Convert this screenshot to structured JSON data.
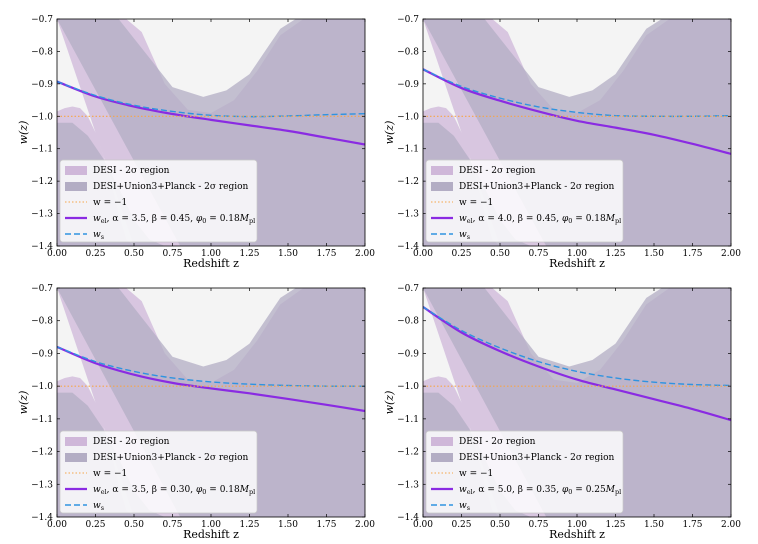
{
  "colors": {
    "desi_band": "#cfb7d9",
    "combined_band": "#b3adc4",
    "overlap": "#a793b6",
    "phantom_divide": "#f5a54a",
    "w_cpl": "#8a2be2",
    "w_s": "#2f93e0"
  },
  "chart_data": [
    {
      "type": "line",
      "panel": "top-left",
      "xlabel": "Redshift z",
      "ylabel": "w(z)",
      "xlim": [
        0.0,
        2.0
      ],
      "ylim": [
        -1.4,
        -0.7
      ],
      "xticks": [
        "0.00",
        "0.25",
        "0.50",
        "0.75",
        "1.00",
        "1.25",
        "1.50",
        "1.75",
        "2.00"
      ],
      "yticks": [
        "−1.4",
        "−1.3",
        "−1.2",
        "−1.1",
        "−1.0",
        "−0.9",
        "−0.8",
        "−0.7"
      ],
      "legend": {
        "position": "lower-left",
        "entries": [
          {
            "label": "DESI - 2σ region",
            "kind": "desi"
          },
          {
            "label": "DESI+Union3+Planck - 2σ region",
            "kind": "combined"
          },
          {
            "label": "w = −1",
            "kind": "dotted"
          },
          {
            "label": "w_el, α = 3.5, β = 0.45, φ0 = 0.18 M_pl",
            "kind": "cpl"
          },
          {
            "label": "w_s",
            "kind": "ws"
          }
        ]
      },
      "series": [
        {
          "name": "w_el",
          "x": [
            0,
            0.25,
            0.5,
            0.75,
            1.0,
            1.25,
            1.5,
            1.75,
            2.0
          ],
          "values": [
            -0.893,
            -0.939,
            -0.97,
            -0.993,
            -1.011,
            -1.028,
            -1.045,
            -1.066,
            -1.087
          ]
        },
        {
          "name": "w_s",
          "x": [
            0,
            0.25,
            0.5,
            0.75,
            1.0,
            1.25,
            1.5,
            1.75,
            2.0
          ],
          "values": [
            -0.893,
            -0.936,
            -0.966,
            -0.985,
            -0.997,
            -1.001,
            -0.999,
            -0.995,
            -0.992
          ]
        },
        {
          "name": "w = −1",
          "x": [
            0,
            2.0
          ],
          "values": [
            -1.0,
            -1.0
          ]
        }
      ],
      "bands": {
        "desi_upper": {
          "x": [
            0.45,
            0.55,
            0.7,
            0.85,
            1.0,
            1.15,
            1.3,
            1.45,
            1.6,
            1.75,
            1.9,
            2.0
          ],
          "values": [
            -0.7,
            -0.74,
            -0.9,
            -0.98,
            -0.99,
            -0.95,
            -0.86,
            -0.75,
            -0.7,
            -0.7,
            -0.7,
            -0.7
          ]
        },
        "desi_lower": {
          "x": [
            0.0,
            0.05,
            0.1,
            0.15,
            0.2,
            0.25,
            0.3,
            0.35,
            0.4,
            0.45,
            0.5
          ],
          "values": [
            -0.985,
            -0.975,
            -0.97,
            -0.975,
            -1.0,
            -1.05,
            -1.12,
            -1.2,
            -1.3,
            -1.38,
            -1.4
          ]
        },
        "combined_upper": {
          "x": [
            0.0,
            0.2,
            0.4,
            0.6,
            0.75,
            0.95,
            1.1,
            1.25,
            1.35,
            1.45,
            1.55,
            1.6
          ],
          "values": [
            -0.7,
            -0.7,
            -0.7,
            -0.82,
            -0.91,
            -0.94,
            -0.92,
            -0.87,
            -0.8,
            -0.73,
            -0.7,
            -0.7
          ]
        },
        "combined_lower": {
          "x": [
            0.0,
            0.1,
            0.2,
            0.3,
            0.4,
            0.5,
            0.6,
            0.7,
            0.8
          ],
          "values": [
            -1.02,
            -1.02,
            -1.06,
            -1.13,
            -1.22,
            -1.32,
            -1.38,
            -1.4,
            -1.4
          ]
        }
      }
    },
    {
      "type": "line",
      "panel": "top-right",
      "xlabel": "Redshift z",
      "ylabel": "w(z)",
      "xlim": [
        0.0,
        2.0
      ],
      "ylim": [
        -1.4,
        -0.7
      ],
      "xticks": [
        "0.00",
        "0.25",
        "0.50",
        "0.75",
        "1.00",
        "1.25",
        "1.50",
        "1.75",
        "2.00"
      ],
      "yticks": [
        "−1.4",
        "−1.3",
        "−1.2",
        "−1.1",
        "−1.0",
        "−0.9",
        "−0.8",
        "−0.7"
      ],
      "legend": {
        "position": "lower-left",
        "entries": [
          {
            "label": "DESI - 2σ region",
            "kind": "desi"
          },
          {
            "label": "DESI+Union3+Planck - 2σ region",
            "kind": "combined"
          },
          {
            "label": "w = −1",
            "kind": "dotted"
          },
          {
            "label": "w_el, α = 4.0, β = 0.45, φ0 = 0.18 M_pl",
            "kind": "cpl"
          },
          {
            "label": "w_s",
            "kind": "ws"
          }
        ]
      },
      "series": [
        {
          "name": "w_el",
          "x": [
            0,
            0.25,
            0.5,
            0.75,
            1.0,
            1.25,
            1.5,
            1.75,
            2.0
          ],
          "values": [
            -0.855,
            -0.913,
            -0.952,
            -0.985,
            -1.014,
            -1.035,
            -1.057,
            -1.085,
            -1.116
          ]
        },
        {
          "name": "w_s",
          "x": [
            0,
            0.25,
            0.5,
            0.75,
            1.0,
            1.25,
            1.5,
            1.75,
            2.0
          ],
          "values": [
            -0.855,
            -0.908,
            -0.944,
            -0.971,
            -0.988,
            -0.998,
            -1.0,
            -1.0,
            -0.998
          ]
        },
        {
          "name": "w = −1",
          "x": [
            0,
            2.0
          ],
          "values": [
            -1.0,
            -1.0
          ]
        }
      ],
      "bands": {
        "desi_upper": {
          "x": [
            0.45,
            0.55,
            0.7,
            0.85,
            1.0,
            1.15,
            1.3,
            1.45,
            1.6,
            1.75,
            1.9,
            2.0
          ],
          "values": [
            -0.7,
            -0.74,
            -0.9,
            -0.98,
            -0.99,
            -0.95,
            -0.86,
            -0.75,
            -0.7,
            -0.7,
            -0.7,
            -0.7
          ]
        },
        "desi_lower": {
          "x": [
            0.0,
            0.05,
            0.1,
            0.15,
            0.2,
            0.25,
            0.3,
            0.35,
            0.4,
            0.45,
            0.5
          ],
          "values": [
            -0.985,
            -0.975,
            -0.97,
            -0.975,
            -1.0,
            -1.05,
            -1.12,
            -1.2,
            -1.3,
            -1.38,
            -1.4
          ]
        },
        "combined_upper": {
          "x": [
            0.0,
            0.2,
            0.4,
            0.6,
            0.75,
            0.95,
            1.1,
            1.25,
            1.35,
            1.45,
            1.55,
            1.6
          ],
          "values": [
            -0.7,
            -0.7,
            -0.7,
            -0.82,
            -0.91,
            -0.94,
            -0.92,
            -0.87,
            -0.8,
            -0.73,
            -0.7,
            -0.7
          ]
        },
        "combined_lower": {
          "x": [
            0.0,
            0.1,
            0.2,
            0.3,
            0.4,
            0.5,
            0.6,
            0.7,
            0.8
          ],
          "values": [
            -1.02,
            -1.02,
            -1.06,
            -1.13,
            -1.22,
            -1.32,
            -1.38,
            -1.4,
            -1.4
          ]
        }
      }
    },
    {
      "type": "line",
      "panel": "bottom-left",
      "xlabel": "Redshift z",
      "ylabel": "w(z)",
      "xlim": [
        0.0,
        2.0
      ],
      "ylim": [
        -1.4,
        -0.7
      ],
      "xticks": [
        "0.00",
        "0.25",
        "0.50",
        "0.75",
        "1.00",
        "1.25",
        "1.50",
        "1.75",
        "2.00"
      ],
      "yticks": [
        "−1.4",
        "−1.3",
        "−1.2",
        "−1.1",
        "−1.0",
        "−0.9",
        "−0.8",
        "−0.7"
      ],
      "legend": {
        "position": "lower-left",
        "entries": [
          {
            "label": "DESI - 2σ region",
            "kind": "desi"
          },
          {
            "label": "DESI+Union3+Planck - 2σ region",
            "kind": "combined"
          },
          {
            "label": "w = −1",
            "kind": "dotted"
          },
          {
            "label": "w_el, α = 3.5, β = 0.30, φ0 = 0.18 M_pl",
            "kind": "cpl"
          },
          {
            "label": "w_s",
            "kind": "ws"
          }
        ]
      },
      "series": [
        {
          "name": "w_el",
          "x": [
            0,
            0.25,
            0.5,
            0.75,
            1.0,
            1.25,
            1.5,
            1.75,
            2.0
          ],
          "values": [
            -0.88,
            -0.93,
            -0.965,
            -0.99,
            -1.007,
            -1.022,
            -1.039,
            -1.057,
            -1.076
          ]
        },
        {
          "name": "w_s",
          "x": [
            0,
            0.25,
            0.5,
            0.75,
            1.0,
            1.25,
            1.5,
            1.75,
            2.0
          ],
          "values": [
            -0.88,
            -0.925,
            -0.955,
            -0.975,
            -0.987,
            -0.994,
            -0.998,
            -1.0,
            -1.0
          ]
        },
        {
          "name": "w = −1",
          "x": [
            0,
            2.0
          ],
          "values": [
            -1.0,
            -1.0
          ]
        }
      ],
      "bands": {
        "desi_upper": {
          "x": [
            0.45,
            0.55,
            0.7,
            0.85,
            1.0,
            1.15,
            1.3,
            1.45,
            1.6,
            1.75,
            1.9,
            2.0
          ],
          "values": [
            -0.7,
            -0.74,
            -0.9,
            -0.98,
            -0.99,
            -0.95,
            -0.86,
            -0.75,
            -0.7,
            -0.7,
            -0.7,
            -0.7
          ]
        },
        "desi_lower": {
          "x": [
            0.0,
            0.05,
            0.1,
            0.15,
            0.2,
            0.25,
            0.3,
            0.35,
            0.4,
            0.45,
            0.5
          ],
          "values": [
            -0.985,
            -0.975,
            -0.97,
            -0.975,
            -1.0,
            -1.05,
            -1.12,
            -1.2,
            -1.3,
            -1.38,
            -1.4
          ]
        },
        "combined_upper": {
          "x": [
            0.0,
            0.2,
            0.4,
            0.6,
            0.75,
            0.95,
            1.1,
            1.25,
            1.35,
            1.45,
            1.55,
            1.6
          ],
          "values": [
            -0.7,
            -0.7,
            -0.7,
            -0.82,
            -0.91,
            -0.94,
            -0.92,
            -0.87,
            -0.8,
            -0.73,
            -0.7,
            -0.7
          ]
        },
        "combined_lower": {
          "x": [
            0.0,
            0.1,
            0.2,
            0.3,
            0.4,
            0.5,
            0.6,
            0.7,
            0.8
          ],
          "values": [
            -1.02,
            -1.02,
            -1.06,
            -1.13,
            -1.22,
            -1.32,
            -1.38,
            -1.4,
            -1.4
          ]
        }
      }
    },
    {
      "type": "line",
      "panel": "bottom-right",
      "xlabel": "Redshift z",
      "ylabel": "w(z)",
      "xlim": [
        0.0,
        2.0
      ],
      "ylim": [
        -1.4,
        -0.7
      ],
      "xticks": [
        "0.00",
        "0.25",
        "0.50",
        "0.75",
        "1.00",
        "1.25",
        "1.50",
        "1.75",
        "2.00"
      ],
      "yticks": [
        "−1.4",
        "−1.3",
        "−1.2",
        "−1.1",
        "−1.0",
        "−0.9",
        "−0.8",
        "−0.7"
      ],
      "legend": {
        "position": "lower-left",
        "entries": [
          {
            "label": "DESI - 2σ region",
            "kind": "desi"
          },
          {
            "label": "DESI+Union3+Planck - 2σ region",
            "kind": "combined"
          },
          {
            "label": "w = −1",
            "kind": "dotted"
          },
          {
            "label": "w_el, α = 5.0, β = 0.35, φ0 = 0.25 M_pl",
            "kind": "cpl"
          },
          {
            "label": "w_s",
            "kind": "ws"
          }
        ]
      },
      "series": [
        {
          "name": "w_el",
          "x": [
            0,
            0.25,
            0.5,
            0.75,
            1.0,
            1.25,
            1.5,
            1.75,
            2.0
          ],
          "values": [
            -0.758,
            -0.836,
            -0.893,
            -0.94,
            -0.98,
            -1.01,
            -1.04,
            -1.07,
            -1.104
          ]
        },
        {
          "name": "w_s",
          "x": [
            0,
            0.25,
            0.5,
            0.75,
            1.0,
            1.25,
            1.5,
            1.75,
            2.0
          ],
          "values": [
            -0.758,
            -0.83,
            -0.883,
            -0.925,
            -0.955,
            -0.975,
            -0.988,
            -0.995,
            -0.998
          ]
        },
        {
          "name": "w = −1",
          "x": [
            0,
            2.0
          ],
          "values": [
            -1.0,
            -1.0
          ]
        }
      ],
      "bands": {
        "desi_upper": {
          "x": [
            0.45,
            0.55,
            0.7,
            0.85,
            1.0,
            1.15,
            1.3,
            1.45,
            1.6,
            1.75,
            1.9,
            2.0
          ],
          "values": [
            -0.7,
            -0.74,
            -0.9,
            -0.98,
            -0.99,
            -0.95,
            -0.86,
            -0.75,
            -0.7,
            -0.7,
            -0.7,
            -0.7
          ]
        },
        "desi_lower": {
          "x": [
            0.0,
            0.05,
            0.1,
            0.15,
            0.2,
            0.25,
            0.3,
            0.35,
            0.4,
            0.45,
            0.5
          ],
          "values": [
            -0.985,
            -0.975,
            -0.97,
            -0.975,
            -1.0,
            -1.05,
            -1.12,
            -1.2,
            -1.3,
            -1.38,
            -1.4
          ]
        },
        "combined_upper": {
          "x": [
            0.0,
            0.2,
            0.4,
            0.6,
            0.75,
            0.95,
            1.1,
            1.25,
            1.35,
            1.45,
            1.55,
            1.6
          ],
          "values": [
            -0.7,
            -0.7,
            -0.7,
            -0.82,
            -0.91,
            -0.94,
            -0.92,
            -0.87,
            -0.8,
            -0.73,
            -0.7,
            -0.7
          ]
        },
        "combined_lower": {
          "x": [
            0.0,
            0.1,
            0.2,
            0.3,
            0.4,
            0.5,
            0.6,
            0.7,
            0.8
          ],
          "values": [
            -1.02,
            -1.02,
            -1.06,
            -1.13,
            -1.22,
            -1.32,
            -1.38,
            -1.4,
            -1.4
          ]
        }
      }
    }
  ]
}
